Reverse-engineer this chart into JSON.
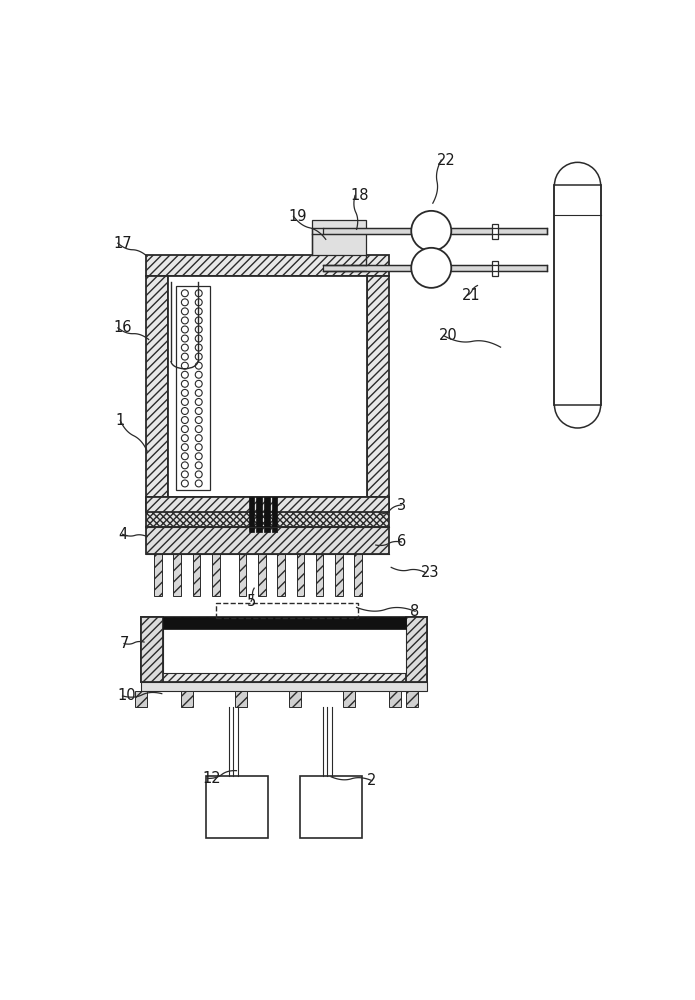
{
  "bg_color": "#ffffff",
  "lc": "#2a2a2a",
  "lw": 1.3,
  "figsize": [
    6.95,
    10.0
  ],
  "dpi": 100
}
